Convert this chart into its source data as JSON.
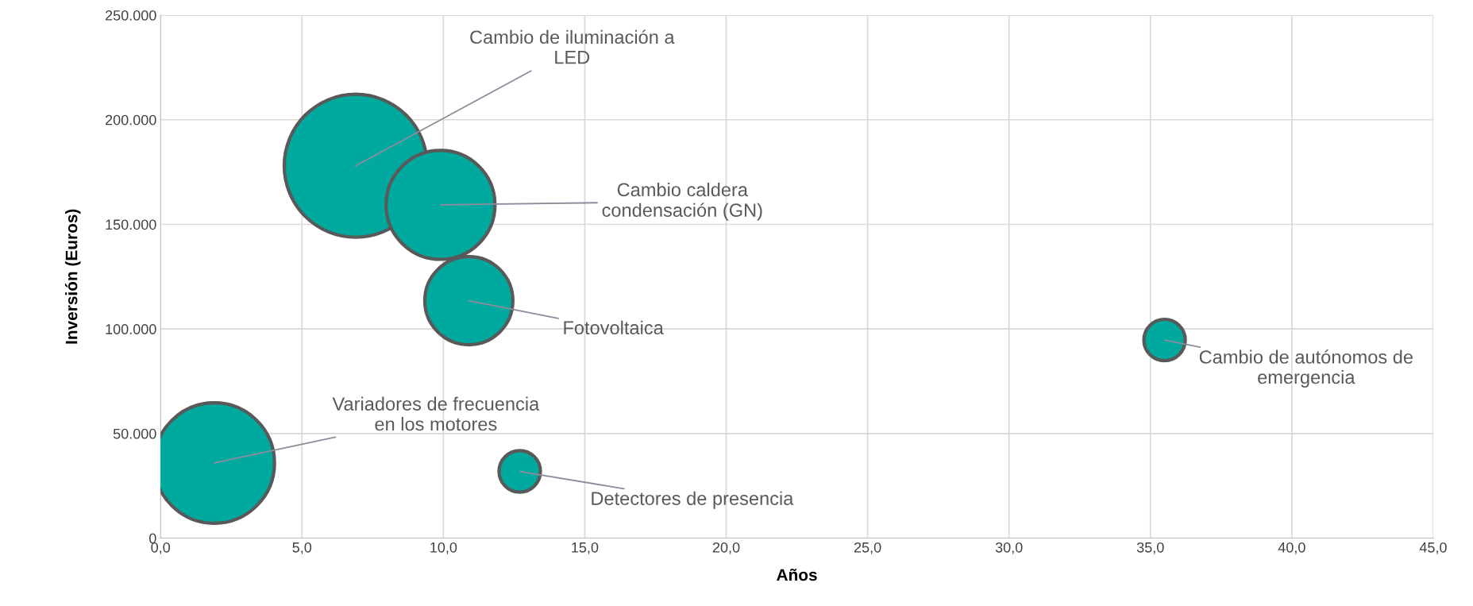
{
  "chart_data": {
    "type": "bubble",
    "xlabel": "Años",
    "ylabel": "Inversión (Euros)",
    "x": [
      6.9,
      9.9,
      10.9,
      35.5,
      1.9,
      12.7
    ],
    "series": [
      {
        "color": "#00a99d",
        "values": [
          178000,
          159300,
          113500,
          94700,
          35900,
          31900
        ],
        "sizes": [
          1,
          0.58,
          0.38,
          0.084,
          0.71,
          0.084
        ]
      }
    ],
    "xlim": [
      0,
      45
    ],
    "ylim": [
      0,
      250000
    ],
    "xticks": [
      {
        "value": 0,
        "label": "0,0"
      },
      {
        "value": 5,
        "label": "5,0"
      },
      {
        "value": 10,
        "label": "10,0"
      },
      {
        "value": 15,
        "label": "15,0"
      },
      {
        "value": 20,
        "label": "20,0"
      },
      {
        "value": 25,
        "label": "25,0"
      },
      {
        "value": 30,
        "label": "30,0"
      },
      {
        "value": 35,
        "label": "35,0"
      },
      {
        "value": 40,
        "label": "40,0"
      },
      {
        "value": 45,
        "label": "45,0"
      }
    ],
    "yticks": [
      0,
      {
        "value": 50000,
        "label": "50.000"
      },
      {
        "value": 100000,
        "label": "100.000"
      },
      {
        "value": 150000,
        "label": "150.000"
      },
      {
        "value": 200000,
        "label": "200.000"
      },
      {
        "value": 250000,
        "label": "250.000"
      }
    ],
    "grid": true,
    "annotations": [
      {
        "text": "Cambio de iluminación a\nLED",
        "x": 6.9,
        "y": 178000
      },
      {
        "text": "Cambio caldera\ncondensación (GN)",
        "x": 9.9,
        "y": 159300
      },
      {
        "text": "Fotovoltaica",
        "x": 10.9,
        "y": 113500
      },
      {
        "text": "Cambio de autónomos de\nemergencia",
        "x": 35.5,
        "y": 94700
      },
      {
        "text": "Variadores de frecuencia\nen los motores",
        "x": 1.9,
        "y": 35900
      },
      {
        "text": "Detectores de presencia",
        "x": 12.7,
        "y": 31900
      }
    ]
  }
}
